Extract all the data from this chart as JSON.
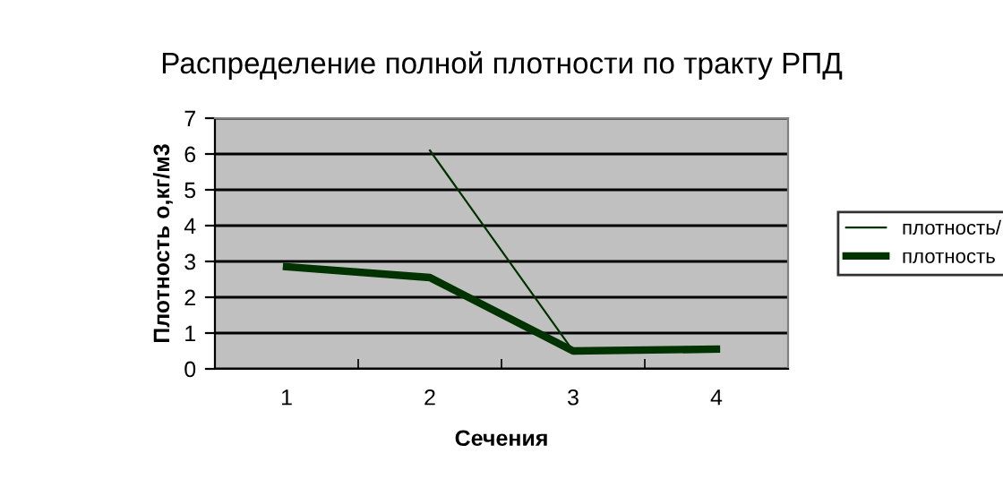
{
  "chart_data": {
    "type": "line",
    "title": "Распределение полной плотности по тракту РПД",
    "xlabel": "Сечения",
    "ylabel": "Плотность о,кг/м3",
    "categories": [
      "1",
      "2",
      "3",
      "4"
    ],
    "series": [
      {
        "name": "плотность/",
        "color": "#003300",
        "values": [
          null,
          6.1,
          0.5,
          null
        ]
      },
      {
        "name": "плотность",
        "color": "#003300",
        "values": [
          2.85,
          2.55,
          0.5,
          0.55
        ]
      }
    ],
    "ylim": [
      0,
      7
    ],
    "yticks": [
      0,
      1,
      2,
      3,
      4,
      5,
      6,
      7
    ],
    "grid": "y",
    "legend": "right",
    "marker": "none",
    "line_style": "solid"
  }
}
